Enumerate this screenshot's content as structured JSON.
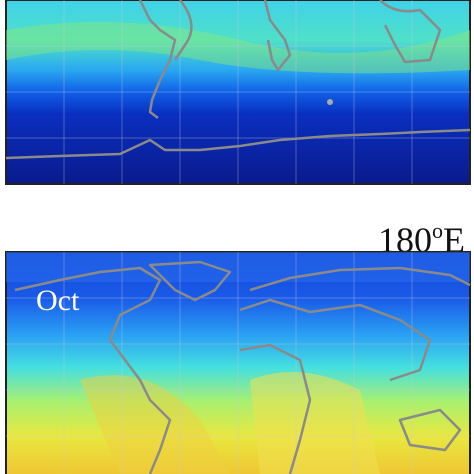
{
  "longitude_label": {
    "number": "180",
    "superscript": "o",
    "hemisphere": "E"
  },
  "lower_panel": {
    "month": "Oct"
  }
}
